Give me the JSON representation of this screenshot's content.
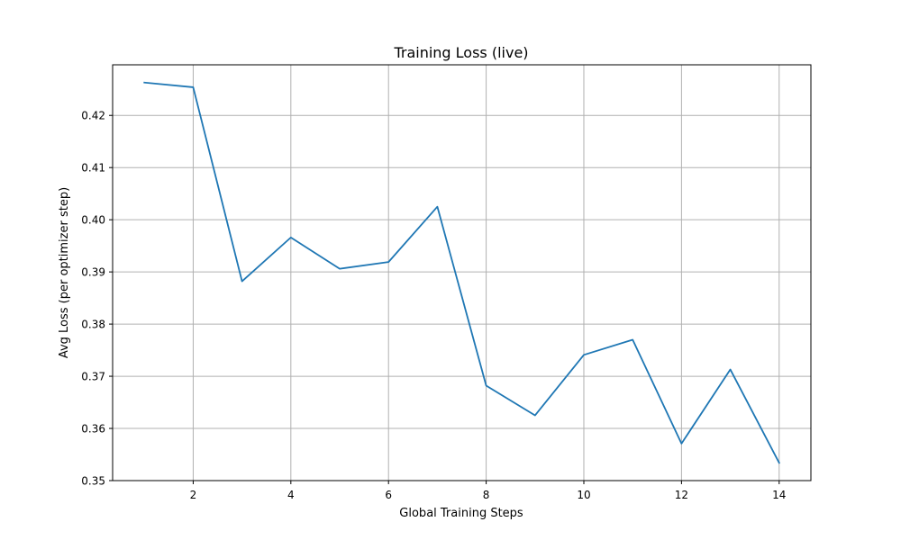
{
  "chart_data": {
    "type": "line",
    "title": "Training Loss (live)",
    "xlabel": "Global Training Steps",
    "ylabel": "Avg Loss (per optimizer step)",
    "x": [
      1,
      2,
      3,
      4,
      5,
      6,
      7,
      8,
      9,
      10,
      11,
      12,
      13,
      14
    ],
    "series": [
      {
        "values": [
          0.4263,
          0.4254,
          0.3882,
          0.3966,
          0.3906,
          0.3919,
          0.4025,
          0.3682,
          0.3625,
          0.3741,
          0.377,
          0.3571,
          0.3713,
          0.3534
        ],
        "color": "#1f77b4"
      }
    ],
    "xlim": [
      0.35,
      14.65
    ],
    "ylim": [
      0.35,
      0.4297
    ],
    "x_ticks": [
      2,
      4,
      6,
      8,
      10,
      12,
      14
    ],
    "x_tick_labels": [
      "2",
      "4",
      "6",
      "8",
      "10",
      "12",
      "14"
    ],
    "y_ticks": [
      0.35,
      0.36,
      0.37,
      0.38,
      0.39,
      0.4,
      0.41,
      0.42
    ],
    "y_tick_labels": [
      "0.35",
      "0.36",
      "0.37",
      "0.38",
      "0.39",
      "0.40",
      "0.41",
      "0.42"
    ],
    "grid": true,
    "grid_color": "#b0b0b0"
  }
}
